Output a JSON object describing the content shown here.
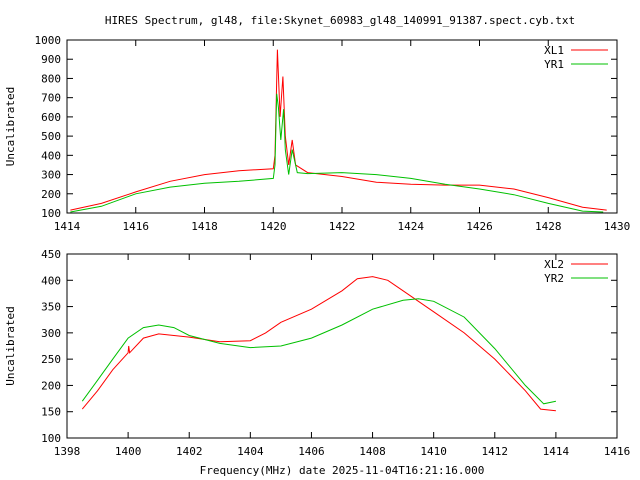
{
  "title": "HIRES Spectrum, gl48, file:Skynet_60983_gl48_140991_91387.spect.cyb.txt",
  "chart_data": [
    {
      "type": "line",
      "xlabel": "",
      "ylabel": "Uncalibrated",
      "xlim": [
        1414,
        1430
      ],
      "ylim": [
        100,
        1000
      ],
      "xticks": [
        1414,
        1416,
        1418,
        1420,
        1422,
        1424,
        1426,
        1428,
        1430
      ],
      "yticks": [
        100,
        200,
        300,
        400,
        500,
        600,
        700,
        800,
        900,
        1000
      ],
      "legend": "top-right",
      "series": [
        {
          "name": "XL1",
          "color": "#ff0000",
          "x": [
            1414.1,
            1415,
            1416,
            1417,
            1418,
            1419,
            1420,
            1420.05,
            1420.12,
            1420.2,
            1420.28,
            1420.35,
            1420.45,
            1420.55,
            1420.65,
            1421,
            1422,
            1423,
            1424,
            1425,
            1426,
            1427,
            1428,
            1429,
            1429.7
          ],
          "y": [
            115,
            150,
            210,
            265,
            300,
            320,
            330,
            400,
            950,
            600,
            810,
            500,
            350,
            480,
            350,
            310,
            290,
            260,
            250,
            245,
            245,
            225,
            180,
            130,
            115
          ]
        },
        {
          "name": "YR1",
          "color": "#00c000",
          "x": [
            1414.1,
            1415,
            1416,
            1417,
            1418,
            1419,
            1420,
            1420.05,
            1420.1,
            1420.15,
            1420.22,
            1420.3,
            1420.35,
            1420.45,
            1420.55,
            1420.7,
            1421,
            1422,
            1423,
            1424,
            1425,
            1426,
            1427,
            1428,
            1429,
            1429.6
          ],
          "y": [
            105,
            135,
            200,
            235,
            255,
            265,
            280,
            350,
            720,
            650,
            480,
            640,
            430,
            300,
            430,
            310,
            305,
            310,
            300,
            280,
            250,
            225,
            195,
            150,
            110,
            105
          ]
        }
      ]
    },
    {
      "type": "line",
      "xlabel": "Frequency(MHz) date 2025-11-04T16:21:16.000",
      "ylabel": "Uncalibrated",
      "xlim": [
        1398,
        1416
      ],
      "ylim": [
        100,
        450
      ],
      "xticks": [
        1398,
        1400,
        1402,
        1404,
        1406,
        1408,
        1410,
        1412,
        1414,
        1416
      ],
      "yticks": [
        100,
        150,
        200,
        250,
        300,
        350,
        400,
        450
      ],
      "legend": "top-right",
      "series": [
        {
          "name": "XL2",
          "color": "#ff0000",
          "x": [
            1398.5,
            1399,
            1399.5,
            1400,
            1400.02,
            1400.05,
            1400.5,
            1401,
            1402,
            1403,
            1404,
            1404.5,
            1405,
            1406,
            1407,
            1407.5,
            1408,
            1408.5,
            1409,
            1410,
            1411,
            1412,
            1413,
            1413.5,
            1414
          ],
          "y": [
            155,
            190,
            230,
            262,
            275,
            262,
            290,
            298,
            292,
            283,
            285,
            300,
            320,
            345,
            380,
            403,
            407,
            400,
            380,
            340,
            300,
            250,
            190,
            155,
            152
          ]
        },
        {
          "name": "YR2",
          "color": "#00c000",
          "x": [
            1398.5,
            1399,
            1399.5,
            1400,
            1400.5,
            1401,
            1401.5,
            1402,
            1403,
            1404,
            1405,
            1406,
            1407,
            1408,
            1409,
            1409.5,
            1410,
            1411,
            1412,
            1413,
            1413.6,
            1414
          ],
          "y": [
            170,
            210,
            250,
            290,
            310,
            315,
            310,
            295,
            280,
            272,
            275,
            290,
            315,
            345,
            362,
            365,
            360,
            330,
            270,
            200,
            165,
            170
          ]
        }
      ]
    }
  ]
}
